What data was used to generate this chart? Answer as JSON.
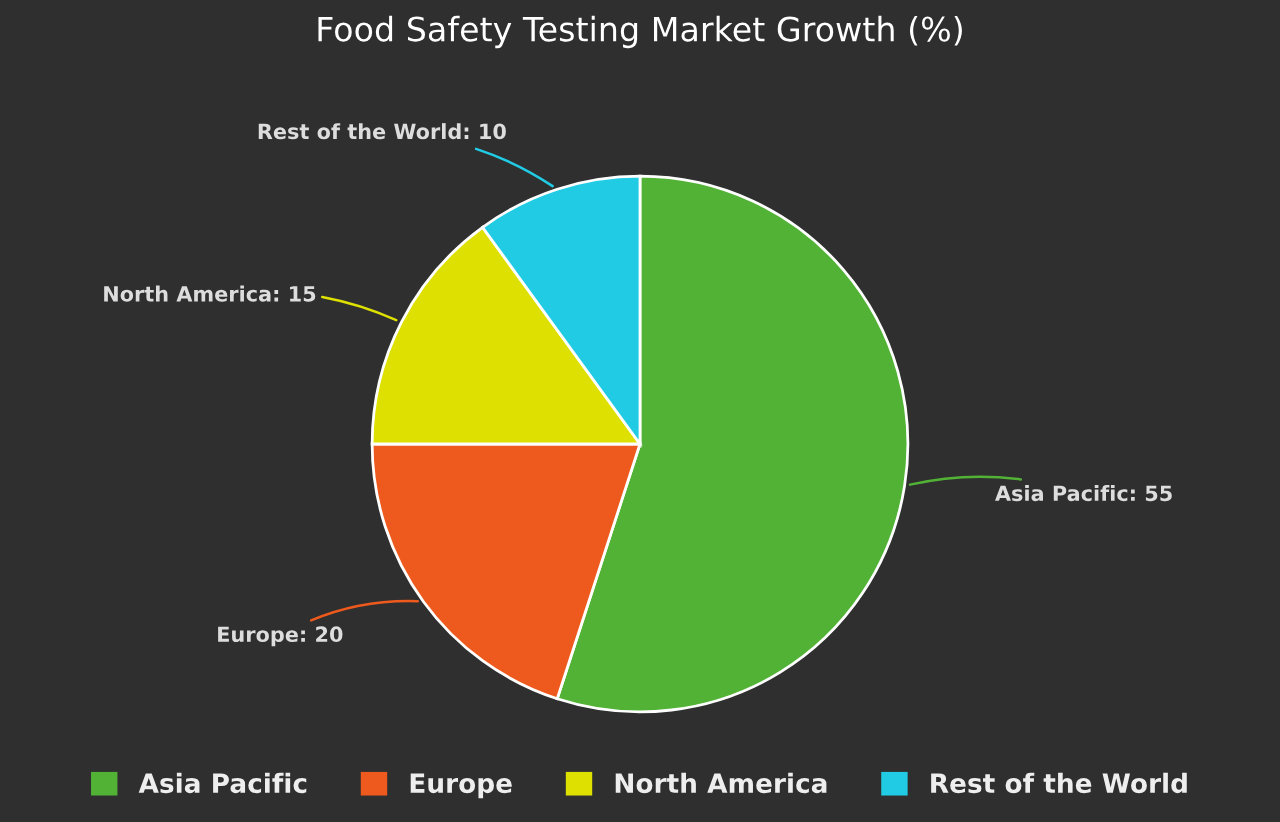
{
  "chart_data": {
    "type": "pie",
    "title": "Food Safety Testing Market Growth (%)",
    "categories": [
      "Asia Pacific",
      "Europe",
      "North America",
      "Rest of the World"
    ],
    "values": [
      55,
      20,
      15,
      10
    ],
    "colors": [
      "#52b236",
      "#ee5a1d",
      "#dde000",
      "#22cbe4"
    ],
    "value_labels": [
      "Asia Pacific: 55",
      "Europe: 20",
      "North America: 15",
      "Rest of the World: 10"
    ],
    "legend": "bottom"
  }
}
